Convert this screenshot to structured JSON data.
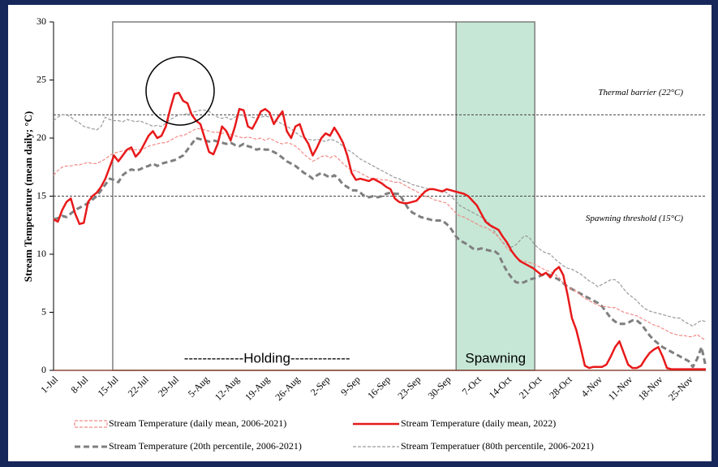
{
  "chart_data": {
    "type": "line",
    "y_label": "Stream Temperature (mean daily; °C)",
    "ylim": [
      0,
      30
    ],
    "yticks": [
      0,
      5,
      10,
      15,
      20,
      25,
      30
    ],
    "annotations": [
      "-------------Holding-------------",
      "Spawning"
    ],
    "reference_lines": [
      {
        "value": 22,
        "label": "Thermal barrier (22°C)"
      },
      {
        "value": 15,
        "label": "Spawning threshold (15°C)"
      }
    ],
    "categories": [
      "1-Jul",
      null,
      null,
      null,
      null,
      null,
      null,
      "8-Jul",
      null,
      null,
      null,
      null,
      null,
      null,
      "15-Jul",
      null,
      null,
      null,
      null,
      null,
      null,
      "22-Jul",
      null,
      null,
      null,
      null,
      null,
      null,
      "29-Jul",
      null,
      null,
      null,
      null,
      null,
      null,
      "5-Aug",
      null,
      null,
      null,
      null,
      null,
      null,
      "12-Aug",
      null,
      null,
      null,
      null,
      null,
      null,
      "19-Aug",
      null,
      null,
      null,
      null,
      null,
      null,
      "26-Aug",
      null,
      null,
      null,
      null,
      null,
      null,
      "2-Sep",
      null,
      null,
      null,
      null,
      null,
      null,
      "9-Sep",
      null,
      null,
      null,
      null,
      null,
      null,
      "16-Sep",
      null,
      null,
      null,
      null,
      null,
      null,
      "23-Sep",
      null,
      null,
      null,
      null,
      null,
      null,
      "30-Sep",
      null,
      null,
      null,
      null,
      null,
      null,
      "7-Oct",
      null,
      null,
      null,
      null,
      null,
      null,
      "14-Oct",
      null,
      null,
      null,
      null,
      null,
      null,
      "21-Oct",
      null,
      null,
      null,
      null,
      null,
      null,
      "28-Oct",
      null,
      null,
      null,
      null,
      null,
      null,
      "4-Nov",
      null,
      null,
      null,
      null,
      null,
      null,
      "11-Nov",
      null,
      null,
      null,
      null,
      null,
      null,
      "18-Nov",
      null,
      null,
      null,
      null,
      null,
      null,
      "25-Nov",
      null,
      null,
      null,
      null
    ],
    "series": [
      {
        "name": "Stream Temperature (daily mean, 2006-2021)",
        "color": "#f08a86",
        "style": "area-dashed",
        "values": [
          16.8,
          17.2,
          17.5,
          17.6,
          17.6,
          17.7,
          17.7,
          17.8,
          17.9,
          17.8,
          17.8,
          18.0,
          18.2,
          18.5,
          18.7,
          18.8,
          18.9,
          18.9,
          19.0,
          19.0,
          19.0,
          19.1,
          19.3,
          19.4,
          19.5,
          19.6,
          19.6,
          19.8,
          20.0,
          20.2,
          20.2,
          20.4,
          20.6,
          20.8,
          20.8,
          20.7,
          20.6,
          20.5,
          20.5,
          20.4,
          20.5,
          20.3,
          20.2,
          20.1,
          20.0,
          20.1,
          20.0,
          19.9,
          20.0,
          19.8,
          20.0,
          19.8,
          19.6,
          19.5,
          19.6,
          19.5,
          19.3,
          19.0,
          18.6,
          18.3,
          18.0,
          18.2,
          18.4,
          18.5,
          18.3,
          18.5,
          18.2,
          17.8,
          17.5,
          17.2,
          17.2,
          17.0,
          16.8,
          16.6,
          16.5,
          16.5,
          16.4,
          16.4,
          16.3,
          16.2,
          16.2,
          16.0,
          15.8,
          15.6,
          15.4,
          15.2,
          15.0,
          14.9,
          14.7,
          14.6,
          14.5,
          14.4,
          14.0,
          13.6,
          13.3,
          13.2,
          13.0,
          12.8,
          12.6,
          12.4,
          12.3,
          12.1,
          11.8,
          11.5,
          11.0,
          10.5,
          10.2,
          9.8,
          9.5,
          9.4,
          9.3,
          9.2,
          9.0,
          8.8,
          8.6,
          8.5,
          8.3,
          8.0,
          7.5,
          7.2,
          7.0,
          6.8,
          6.5,
          6.2,
          6.0,
          5.8,
          5.6,
          5.5,
          5.5,
          5.4,
          5.4,
          5.2,
          5.0,
          4.9,
          4.8,
          4.7,
          4.5,
          4.3,
          4.1,
          3.9,
          3.8,
          3.6,
          3.4,
          3.2,
          3.1,
          3.0,
          3.0,
          2.9,
          2.9,
          3.1,
          2.8,
          2.6
        ]
      },
      {
        "name": "Stream Temperature (daily mean, 2022)",
        "color": "#e8191a",
        "style": "solid",
        "values": [
          13.0,
          12.8,
          13.8,
          14.5,
          14.8,
          13.5,
          12.6,
          12.7,
          14.5,
          15.0,
          15.3,
          15.8,
          16.5,
          17.5,
          18.5,
          18.0,
          18.5,
          19.0,
          19.2,
          18.4,
          18.8,
          19.5,
          20.2,
          20.6,
          20.0,
          20.2,
          21.0,
          22.5,
          23.8,
          23.9,
          23.2,
          23.0,
          22.0,
          21.5,
          21.2,
          20.0,
          18.8,
          18.6,
          19.5,
          21.0,
          20.6,
          19.8,
          21.0,
          22.5,
          22.4,
          21.0,
          20.8,
          21.5,
          22.3,
          22.5,
          22.2,
          21.2,
          21.8,
          22.3,
          20.6,
          20.0,
          21.0,
          21.2,
          20.1,
          19.5,
          18.5,
          19.2,
          20.0,
          20.4,
          20.2,
          20.9,
          20.3,
          19.6,
          18.5,
          17.0,
          16.4,
          16.5,
          16.4,
          16.3,
          16.5,
          16.3,
          16.1,
          15.8,
          15.6,
          14.8,
          14.5,
          14.4,
          14.4,
          14.5,
          14.6,
          15.0,
          15.4,
          15.6,
          15.6,
          15.5,
          15.4,
          15.6,
          15.5,
          15.4,
          15.3,
          15.2,
          15.0,
          14.6,
          14.2,
          13.5,
          12.8,
          12.5,
          12.3,
          12.1,
          11.5,
          11.0,
          10.3,
          9.8,
          9.4,
          9.2,
          9.0,
          8.8,
          8.5,
          8.2,
          8.4,
          8.0,
          8.6,
          8.9,
          8.2,
          6.5,
          4.5,
          3.5,
          2.0,
          0.4,
          0.2,
          0.3,
          0.3,
          0.3,
          0.5,
          1.2,
          2.0,
          2.5,
          1.5,
          0.5,
          0.2,
          0.2,
          0.4,
          1.0,
          1.5,
          1.8,
          2.0,
          1.2,
          0.2,
          0.1,
          0.1,
          0.1,
          0.1,
          0.1,
          0.1,
          0.1,
          0.1,
          0.1
        ]
      },
      {
        "name": "Stream Temperature (20th percentile, 2006-2021)",
        "color": "#7f7f7f",
        "style": "thick-dashed",
        "values": [
          13.0,
          13.1,
          13.3,
          13.2,
          13.5,
          13.8,
          14.0,
          14.2,
          14.4,
          14.7,
          15.0,
          15.5,
          16.0,
          16.5,
          16.4,
          16.2,
          16.8,
          17.1,
          17.3,
          17.2,
          17.3,
          17.5,
          17.6,
          17.8,
          17.6,
          17.8,
          17.9,
          18.0,
          18.1,
          18.3,
          18.5,
          19.0,
          19.5,
          20.0,
          19.9,
          19.8,
          19.7,
          19.8,
          19.7,
          19.6,
          19.5,
          19.6,
          19.4,
          19.3,
          19.5,
          19.3,
          19.2,
          19.0,
          19.1,
          19.0,
          19.0,
          18.8,
          18.6,
          18.3,
          18.0,
          17.8,
          17.6,
          17.3,
          17.0,
          16.8,
          16.5,
          16.8,
          17.0,
          16.8,
          16.6,
          16.8,
          16.5,
          16.0,
          15.8,
          15.5,
          15.5,
          15.3,
          15.0,
          14.9,
          15.0,
          14.9,
          15.0,
          15.2,
          15.3,
          15.2,
          15.2,
          14.6,
          14.0,
          13.6,
          13.4,
          13.2,
          13.1,
          13.0,
          12.9,
          12.9,
          12.9,
          12.6,
          12.2,
          11.6,
          11.2,
          11.0,
          10.8,
          10.5,
          10.4,
          10.5,
          10.4,
          10.3,
          10.3,
          10.0,
          9.2,
          8.5,
          8.0,
          7.6,
          7.5,
          7.6,
          7.8,
          7.9,
          8.0,
          8.2,
          8.3,
          8.2,
          8.0,
          7.8,
          7.5,
          7.2,
          7.0,
          6.8,
          6.6,
          6.4,
          6.2,
          6.0,
          5.8,
          5.5,
          5.0,
          4.5,
          4.2,
          4.0,
          4.0,
          4.1,
          4.3,
          4.3,
          4.0,
          3.5,
          3.0,
          2.6,
          2.3,
          2.0,
          1.8,
          1.6,
          1.4,
          1.2,
          1.0,
          0.8,
          0.3,
          1.0,
          2.0,
          0.3
        ]
      },
      {
        "name": "Stream Temperatuer (80th percentile, 2006-2021)",
        "color": "#9a9a9a",
        "style": "thin-dashed",
        "values": [
          21.5,
          21.8,
          22.0,
          22.0,
          21.8,
          21.5,
          21.3,
          21.0,
          20.9,
          20.8,
          20.7,
          21.0,
          21.8,
          21.6,
          21.5,
          21.5,
          21.4,
          21.6,
          21.5,
          21.4,
          21.5,
          21.3,
          21.2,
          21.0,
          21.1,
          21.0,
          21.3,
          21.6,
          21.8,
          22.0,
          22.0,
          22.1,
          22.2,
          22.3,
          22.4,
          22.4,
          22.3,
          22.0,
          21.8,
          21.7,
          21.8,
          21.6,
          21.8,
          22.0,
          21.9,
          22.0,
          21.8,
          21.7,
          21.8,
          21.9,
          21.8,
          21.6,
          21.4,
          21.2,
          21.0,
          20.8,
          20.5,
          20.2,
          20.0,
          19.9,
          19.8,
          19.9,
          19.8,
          19.7,
          19.9,
          19.8,
          19.6,
          19.3,
          19.0,
          18.8,
          18.5,
          18.2,
          18.0,
          17.8,
          17.6,
          17.4,
          17.2,
          17.0,
          16.8,
          16.6,
          16.5,
          16.3,
          16.2,
          16.0,
          15.9,
          15.8,
          15.7,
          15.6,
          15.6,
          15.5,
          15.5,
          15.3,
          15.0,
          14.6,
          14.2,
          14.0,
          13.8,
          13.6,
          13.4,
          13.2,
          13.0,
          12.6,
          12.0,
          11.5,
          11.0,
          10.8,
          10.6,
          10.8,
          11.2,
          11.6,
          11.5,
          11.0,
          10.6,
          10.3,
          10.1,
          10.0,
          9.6,
          9.3,
          9.0,
          8.8,
          8.7,
          8.5,
          8.3,
          8.0,
          7.7,
          7.5,
          7.2,
          7.4,
          7.6,
          7.8,
          7.8,
          7.5,
          7.0,
          6.6,
          6.3,
          6.0,
          5.6,
          5.3,
          5.1,
          5.0,
          4.9,
          4.8,
          4.7,
          4.6,
          4.5,
          4.5,
          4.2,
          4.0,
          3.8,
          4.1,
          4.3,
          4.2
        ]
      }
    ]
  }
}
